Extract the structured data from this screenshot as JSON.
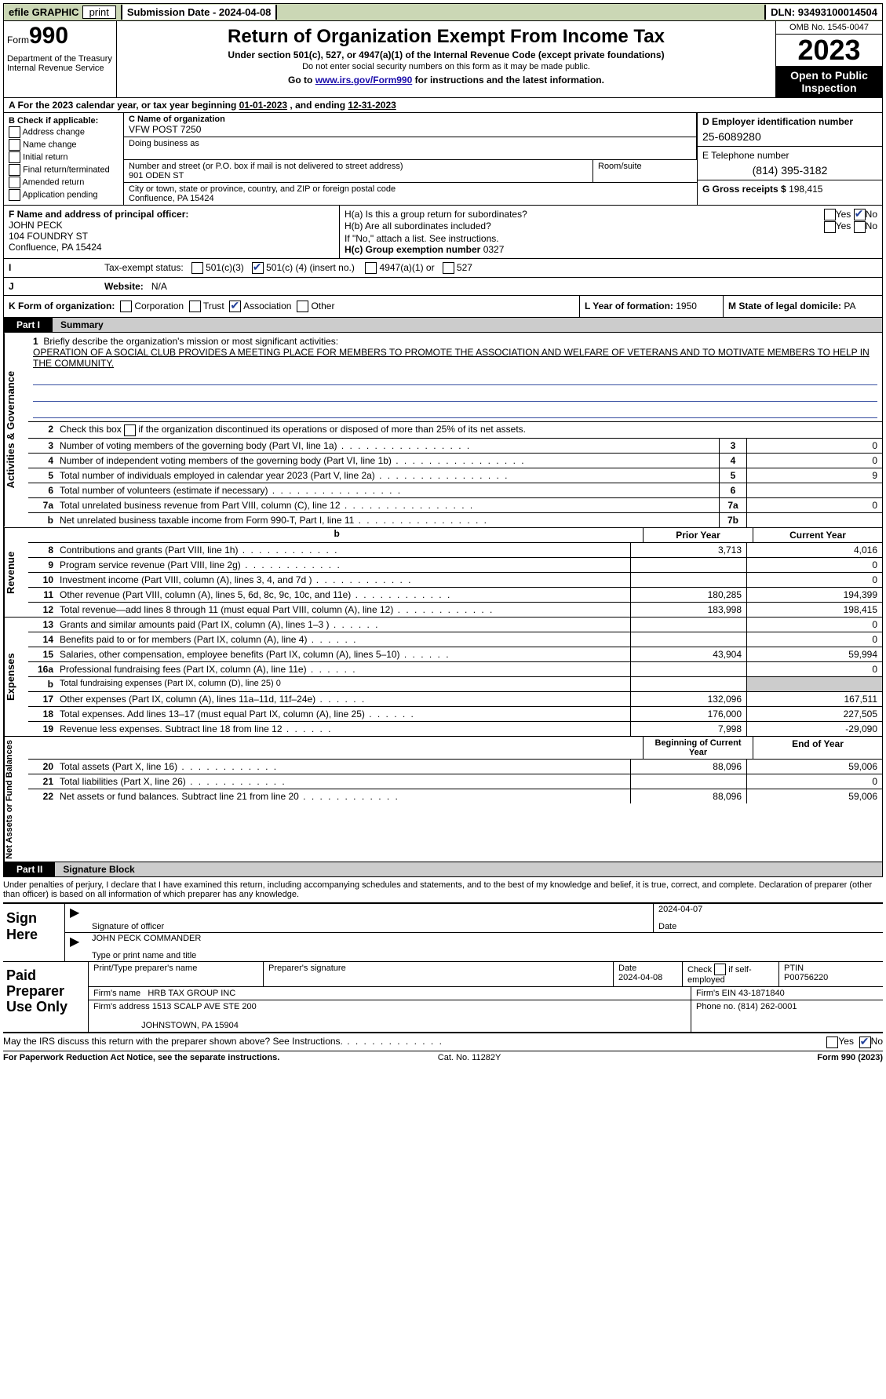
{
  "topbar": {
    "efile": "efile GRAPHIC",
    "print": "print",
    "submission_label": "Submission Date - ",
    "submission_date": "2024-04-08",
    "dln_label": "DLN: ",
    "dln": "93493100014504"
  },
  "header": {
    "form_label": "Form",
    "form_no": "990",
    "title": "Return of Organization Exempt From Income Tax",
    "subtitle": "Under section 501(c), 527, or 4947(a)(1) of the Internal Revenue Code (except private foundations)",
    "ssn_note": "Do not enter social security numbers on this form as it may be made public.",
    "goto_pre": "Go to ",
    "goto_link": "www.irs.gov/Form990",
    "goto_post": " for instructions and the latest information.",
    "dept": "Department of the Treasury\nInternal Revenue Service",
    "omb": "OMB No. 1545-0047",
    "year": "2023",
    "open": "Open to Public Inspection"
  },
  "lineA": {
    "text_pre": "A   For the 2023 calendar year, or tax year beginning ",
    "begin": "01-01-2023",
    "mid": "   , and ending ",
    "end": "12-31-2023"
  },
  "boxB": {
    "label": "B Check if applicable:",
    "opts": [
      "Address change",
      "Name change",
      "Initial return",
      "Final return/terminated",
      "Amended return",
      "Application pending"
    ]
  },
  "boxC": {
    "name_label": "C Name of organization",
    "name": "VFW POST 7250",
    "dba_label": "Doing business as",
    "dba": "",
    "street_label": "Number and street (or P.O. box if mail is not delivered to street address)",
    "street": "901 ODEN ST",
    "room_label": "Room/suite",
    "room": "",
    "city_label": "City or town, state or province, country, and ZIP or foreign postal code",
    "city": "Confluence, PA  15424"
  },
  "boxD": {
    "label": "D Employer identification number",
    "ein": "25-6089280"
  },
  "boxE": {
    "label": "E Telephone number",
    "phone": "(814) 395-3182"
  },
  "boxG": {
    "label": "G Gross receipts $ ",
    "val": "198,415"
  },
  "boxF": {
    "label": "F  Name and address of principal officer:",
    "name": "JOHN PECK",
    "street": "104 FOUNDRY ST",
    "city": "Confluence, PA  15424"
  },
  "boxH": {
    "a": "H(a)  Is this a group return for subordinates?",
    "b": "H(b)  Are all subordinates included?",
    "b_note": "If \"No,\" attach a list. See instructions.",
    "c_label": "H(c)  Group exemption number  ",
    "c_val": "0327",
    "yes": "Yes",
    "no": "No"
  },
  "boxI": {
    "label": "Tax-exempt status:",
    "c3": "501(c)(3)",
    "c_left": "501(c) (",
    "c_num": "4",
    "c_right": ") (insert no.)",
    "a1": "4947(a)(1) or",
    "five27": "527"
  },
  "boxJ": {
    "label": "Website:",
    "val": "N/A"
  },
  "boxK": {
    "label": "K Form of organization:",
    "opts": [
      "Corporation",
      "Trust",
      "Association",
      "Other"
    ],
    "checked_idx": 2
  },
  "boxL": {
    "label": "L Year of formation: ",
    "val": "1950"
  },
  "boxM": {
    "label": "M State of legal domicile: ",
    "val": "PA"
  },
  "part1": {
    "part": "Part I",
    "title": "Summary"
  },
  "activities": {
    "vlabel": "Activities & Governance",
    "l1_label": "Briefly describe the organization's mission or most significant activities:",
    "l1_text": "OPERATION OF A SOCIAL CLUB PROVIDES A MEETING PLACE FOR MEMBERS TO PROMOTE THE ASSOCIATION AND WELFARE OF VETERANS AND TO MOTIVATE MEMBERS TO HELP IN THE COMMUNITY.",
    "l2": "Check this box      if the organization discontinued its operations or disposed of more than 25% of its net assets.",
    "rows": [
      {
        "n": "3",
        "t": "Number of voting members of the governing body (Part VI, line 1a)",
        "box": "3",
        "v": "0"
      },
      {
        "n": "4",
        "t": "Number of independent voting members of the governing body (Part VI, line 1b)",
        "box": "4",
        "v": "0"
      },
      {
        "n": "5",
        "t": "Total number of individuals employed in calendar year 2023 (Part V, line 2a)",
        "box": "5",
        "v": "9"
      },
      {
        "n": "6",
        "t": "Total number of volunteers (estimate if necessary)",
        "box": "6",
        "v": ""
      },
      {
        "n": "7a",
        "t": "Total unrelated business revenue from Part VIII, column (C), line 12",
        "box": "7a",
        "v": "0"
      },
      {
        "n": "b",
        "t": "Net unrelated business taxable income from Form 990-T, Part I, line 11",
        "box": "7b",
        "v": "",
        "noBold": true
      }
    ]
  },
  "revenue": {
    "vlabel": "Revenue",
    "prior": "Prior Year",
    "current": "Current Year",
    "rows": [
      {
        "n": "8",
        "t": "Contributions and grants (Part VIII, line 1h)",
        "py": "3,713",
        "cy": "4,016"
      },
      {
        "n": "9",
        "t": "Program service revenue (Part VIII, line 2g)",
        "py": "",
        "cy": "0"
      },
      {
        "n": "10",
        "t": "Investment income (Part VIII, column (A), lines 3, 4, and 7d )",
        "py": "",
        "cy": "0"
      },
      {
        "n": "11",
        "t": "Other revenue (Part VIII, column (A), lines 5, 6d, 8c, 9c, 10c, and 11e)",
        "py": "180,285",
        "cy": "194,399"
      },
      {
        "n": "12",
        "t": "Total revenue—add lines 8 through 11 (must equal Part VIII, column (A), line 12)",
        "py": "183,998",
        "cy": "198,415"
      }
    ]
  },
  "expenses": {
    "vlabel": "Expenses",
    "rows": [
      {
        "n": "13",
        "t": "Grants and similar amounts paid (Part IX, column (A), lines 1–3 )",
        "py": "",
        "cy": "0"
      },
      {
        "n": "14",
        "t": "Benefits paid to or for members (Part IX, column (A), line 4)",
        "py": "",
        "cy": "0"
      },
      {
        "n": "15",
        "t": "Salaries, other compensation, employee benefits (Part IX, column (A), lines 5–10)",
        "py": "43,904",
        "cy": "59,994"
      },
      {
        "n": "16a",
        "t": "Professional fundraising fees (Part IX, column (A), line 11e)",
        "py": "",
        "cy": "0"
      },
      {
        "n": "b",
        "t": "Total fundraising expenses (Part IX, column (D), line 25) 0",
        "shade": true
      },
      {
        "n": "17",
        "t": "Other expenses (Part IX, column (A), lines 11a–11d, 11f–24e)",
        "py": "132,096",
        "cy": "167,511"
      },
      {
        "n": "18",
        "t": "Total expenses. Add lines 13–17 (must equal Part IX, column (A), line 25)",
        "py": "176,000",
        "cy": "227,505"
      },
      {
        "n": "19",
        "t": "Revenue less expenses. Subtract line 18 from line 12",
        "py": "7,998",
        "cy": "-29,090"
      }
    ]
  },
  "netassets": {
    "vlabel": "Net Assets or Fund Balances",
    "begin": "Beginning of Current Year",
    "end": "End of Year",
    "rows": [
      {
        "n": "20",
        "t": "Total assets (Part X, line 16)",
        "py": "88,096",
        "cy": "59,006"
      },
      {
        "n": "21",
        "t": "Total liabilities (Part X, line 26)",
        "py": "",
        "cy": "0"
      },
      {
        "n": "22",
        "t": "Net assets or fund balances. Subtract line 21 from line 20",
        "py": "88,096",
        "cy": "59,006"
      }
    ]
  },
  "part2": {
    "part": "Part II",
    "title": "Signature Block"
  },
  "penalty": "Under penalties of perjury, I declare that I have examined this return, including accompanying schedules and statements, and to the best of my knowledge and belief, it is true, correct, and complete. Declaration of preparer (other than officer) is based on all information of which preparer has any knowledge.",
  "sign": {
    "label": "Sign Here",
    "sig_label": "Signature of officer",
    "date_label": "Date",
    "date": "2024-04-07",
    "name": "JOHN PECK COMMANDER",
    "name_label": "Type or print name and title"
  },
  "prep": {
    "label": "Paid Preparer Use Only",
    "h_name": "Print/Type preparer's name",
    "h_sig": "Preparer's signature",
    "h_date_l": "Date",
    "h_date": "2024-04-08",
    "h_check": "Check        if self-employed",
    "h_ptin_l": "PTIN",
    "h_ptin": "P00756220",
    "firm_name_l": "Firm's name    ",
    "firm_name": "HRB TAX GROUP INC",
    "firm_ein_l": "Firm's EIN  ",
    "firm_ein": "43-1871840",
    "firm_addr_l": "Firm's address ",
    "firm_addr1": "1513 SCALP AVE STE 200",
    "firm_addr2": "JOHNSTOWN, PA  15904",
    "phone_l": "Phone no. ",
    "phone": "(814) 262-0001"
  },
  "discuss": {
    "q": "May the IRS discuss this return with the preparer shown above? See Instructions.",
    "yes": "Yes",
    "no": "No"
  },
  "footer": {
    "left": "For Paperwork Reduction Act Notice, see the separate instructions.",
    "mid": "Cat. No. 11282Y",
    "right_l": "Form ",
    "right_b": "990",
    "right_r": " (2023)"
  }
}
